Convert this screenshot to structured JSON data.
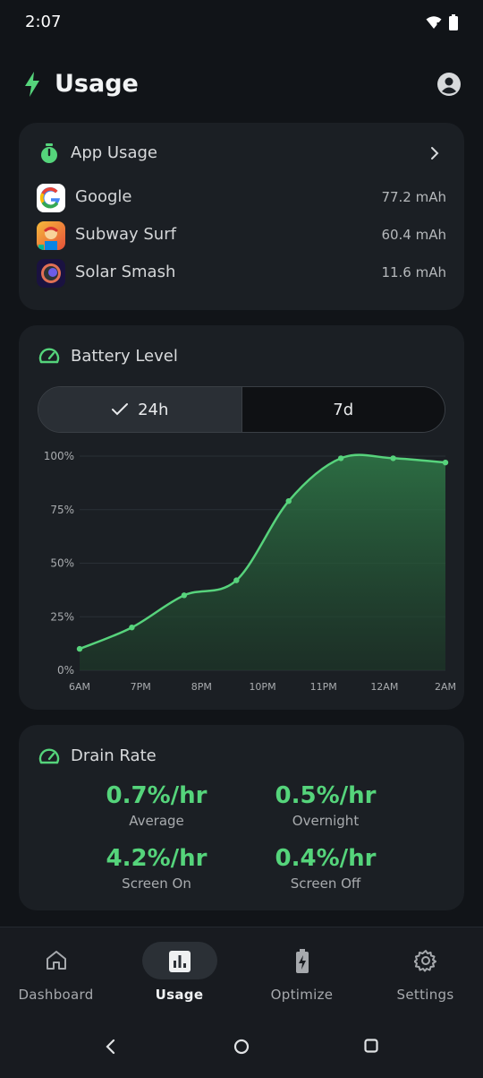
{
  "status": {
    "time": "2:07"
  },
  "header": {
    "title": "Usage"
  },
  "app_usage": {
    "title": "App Usage",
    "apps": [
      {
        "name": "Google",
        "value": "77.2 mAh"
      },
      {
        "name": "Subway Surf",
        "value": "60.4 mAh"
      },
      {
        "name": "Solar Smash",
        "value": "11.6 mAh"
      }
    ]
  },
  "battery_level": {
    "title": "Battery Level",
    "tabs": [
      {
        "label": "24h",
        "selected": true
      },
      {
        "label": "7d",
        "selected": false
      }
    ]
  },
  "chart_data": {
    "type": "area",
    "title": "",
    "xlabel": "",
    "ylabel": "",
    "x_ticks": [
      "6AM",
      "7PM",
      "8PM",
      "10PM",
      "11PM",
      "12AM",
      "2AM"
    ],
    "y_ticks": [
      "100%",
      "75%",
      "50%",
      "25%",
      "0%"
    ],
    "ylim": [
      0,
      100
    ],
    "grid": true,
    "series": [
      {
        "values": [
          10,
          20,
          35,
          42,
          79,
          99,
          99,
          97
        ]
      }
    ],
    "line_color": "#57d37c"
  },
  "drain_rate": {
    "title": "Drain Rate",
    "stats": [
      {
        "value": "0.7%/hr",
        "label": "Average"
      },
      {
        "value": "0.5%/hr",
        "label": "Overnight"
      },
      {
        "value": "4.2%/hr",
        "label": "Screen On"
      },
      {
        "value": "0.4%/hr",
        "label": "Screen Off"
      }
    ]
  },
  "nav": {
    "items": [
      {
        "label": "Dashboard",
        "icon": "home-icon"
      },
      {
        "label": "Usage",
        "icon": "bar-chart-icon",
        "active": true
      },
      {
        "label": "Optimize",
        "icon": "battery-bolt-icon"
      },
      {
        "label": "Settings",
        "icon": "gear-icon"
      }
    ]
  },
  "colors": {
    "accent": "#55d47b",
    "background": "#111418",
    "card": "#1b1f24"
  }
}
